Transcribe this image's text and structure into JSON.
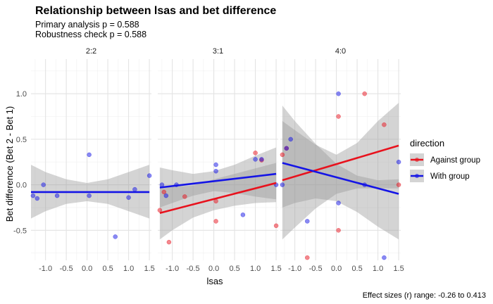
{
  "chart_data": {
    "type": "scatter",
    "title": "Relationship between lsas and bet difference",
    "subtitle_lines": [
      "Primary analysis p = 0.588",
      "Robustness check p = 0.588"
    ],
    "xlabel": "lsas",
    "ylabel": "Bet difference (Bet 2 - Bet 1)",
    "caption": "Effect sizes (r) range: -0.26 to 0.413",
    "xlim": [
      -1.35,
      1.55
    ],
    "ylim": [
      -0.83,
      1.38
    ],
    "x_ticks": [
      -1.0,
      -0.5,
      0.0,
      0.5,
      1.0,
      1.5
    ],
    "x_tick_labels": [
      "-1.0",
      "-0.5",
      "0.0",
      "0.5",
      "1.0",
      "1.5"
    ],
    "y_ticks": [
      -0.5,
      0.0,
      0.5,
      1.0
    ],
    "y_tick_labels": [
      "-0.5",
      "0.0",
      "0.5",
      "1.0"
    ],
    "grid": true,
    "legend": {
      "title": "direction",
      "position": "right",
      "entries": [
        {
          "name": "Against group",
          "color": "#e8121d"
        },
        {
          "name": "With group",
          "color": "#1414e6"
        }
      ]
    },
    "colors": {
      "against": "#e8121d",
      "with": "#1414e6",
      "ribbon": "#999999"
    },
    "facets": [
      {
        "label": "2:2",
        "series": [
          {
            "name": "With group",
            "points": [
              [
                -1.3,
                -0.12
              ],
              [
                -1.2,
                -0.15
              ],
              [
                -1.05,
                0.0
              ],
              [
                -0.72,
                -0.12
              ],
              [
                0.05,
                0.33
              ],
              [
                0.05,
                -0.12
              ],
              [
                0.68,
                -0.57
              ],
              [
                1.0,
                -0.14
              ],
              [
                1.15,
                -0.05
              ],
              [
                1.5,
                0.1
              ]
            ],
            "fit": [
              [
                -1.35,
                -0.08
              ],
              [
                1.5,
                -0.08
              ]
            ],
            "band": {
              "x": [
                -1.35,
                -1.0,
                -0.5,
                0.0,
                0.5,
                1.0,
                1.5
              ],
              "lower": [
                -0.37,
                -0.29,
                -0.21,
                -0.18,
                -0.21,
                -0.29,
                -0.37
              ],
              "upper": [
                0.22,
                0.14,
                0.06,
                0.02,
                0.06,
                0.14,
                0.22
              ]
            }
          }
        ]
      },
      {
        "label": "3:1",
        "series": [
          {
            "name": "Against group",
            "points": [
              [
                -1.3,
                -0.28
              ],
              [
                -1.2,
                -0.08
              ],
              [
                -1.08,
                -0.63
              ],
              [
                -0.7,
                -0.13
              ],
              [
                0.05,
                -0.18
              ],
              [
                0.05,
                -0.4
              ],
              [
                1.0,
                0.35
              ],
              [
                1.15,
                0.27
              ],
              [
                1.5,
                -0.45
              ]
            ],
            "fit": [
              [
                -1.3,
                -0.31
              ],
              [
                1.5,
                0.02
              ]
            ],
            "band": {
              "x": [
                -1.3,
                -1.0,
                -0.5,
                0.0,
                0.5,
                1.0,
                1.5
              ],
              "lower": [
                -0.6,
                -0.5,
                -0.36,
                -0.28,
                -0.23,
                -0.2,
                -0.19
              ],
              "upper": [
                -0.02,
                -0.02,
                -0.01,
                0.06,
                0.12,
                0.18,
                0.24
              ]
            }
          },
          {
            "name": "With group",
            "points": [
              [
                -1.25,
                0.0
              ],
              [
                -1.15,
                -0.12
              ],
              [
                -0.9,
                0.0
              ],
              [
                0.05,
                0.22
              ],
              [
                0.05,
                0.15
              ],
              [
                0.7,
                -0.33
              ],
              [
                1.0,
                0.28
              ],
              [
                1.15,
                0.28
              ],
              [
                1.5,
                0.0
              ]
            ],
            "fit": [
              [
                -1.3,
                -0.03
              ],
              [
                1.5,
                0.12
              ]
            ],
            "band": {
              "x": [
                -1.3,
                -1.0,
                -0.5,
                0.0,
                0.5,
                1.0,
                1.5
              ],
              "lower": [
                -0.25,
                -0.2,
                -0.12,
                -0.07,
                -0.09,
                -0.13,
                -0.16
              ],
              "upper": [
                0.19,
                0.16,
                0.12,
                0.15,
                0.22,
                0.32,
                0.41
              ]
            }
          }
        ]
      },
      {
        "label": "4:0",
        "series": [
          {
            "name": "Against group",
            "points": [
              [
                -1.3,
                0.33
              ],
              [
                -1.2,
                0.4
              ],
              [
                -0.7,
                -0.8
              ],
              [
                0.05,
                0.75
              ],
              [
                0.05,
                -0.5
              ],
              [
                0.68,
                1.0
              ],
              [
                1.15,
                0.66
              ],
              [
                1.5,
                0.0
              ]
            ],
            "fit": [
              [
                -1.3,
                0.05
              ],
              [
                1.5,
                0.43
              ]
            ],
            "band": {
              "x": [
                -1.3,
                -1.0,
                -0.5,
                0.0,
                0.5,
                1.0,
                1.5
              ],
              "lower": [
                -0.6,
                -0.47,
                -0.26,
                -0.1,
                -0.04,
                -0.04,
                -0.04
              ],
              "upper": [
                0.7,
                0.6,
                0.44,
                0.33,
                0.46,
                0.7,
                0.9
              ]
            }
          },
          {
            "name": "With group",
            "points": [
              [
                -1.3,
                0.0
              ],
              [
                -1.2,
                0.4
              ],
              [
                -1.1,
                0.5
              ],
              [
                -0.7,
                -0.4
              ],
              [
                0.05,
                1.0
              ],
              [
                0.05,
                -0.2
              ],
              [
                0.68,
                0.0
              ],
              [
                1.15,
                -0.8
              ],
              [
                1.5,
                0.25
              ]
            ],
            "fit": [
              [
                -1.3,
                0.24
              ],
              [
                1.5,
                -0.1
              ]
            ],
            "band": {
              "x": [
                -1.3,
                -1.0,
                -0.5,
                0.0,
                0.5,
                1.0,
                1.5
              ],
              "lower": [
                -0.25,
                -0.2,
                -0.15,
                -0.18,
                -0.3,
                -0.46,
                -0.6
              ],
              "upper": [
                0.87,
                0.7,
                0.45,
                0.23,
                0.1,
                0.05,
                0.06
              ]
            }
          }
        ]
      }
    ]
  }
}
